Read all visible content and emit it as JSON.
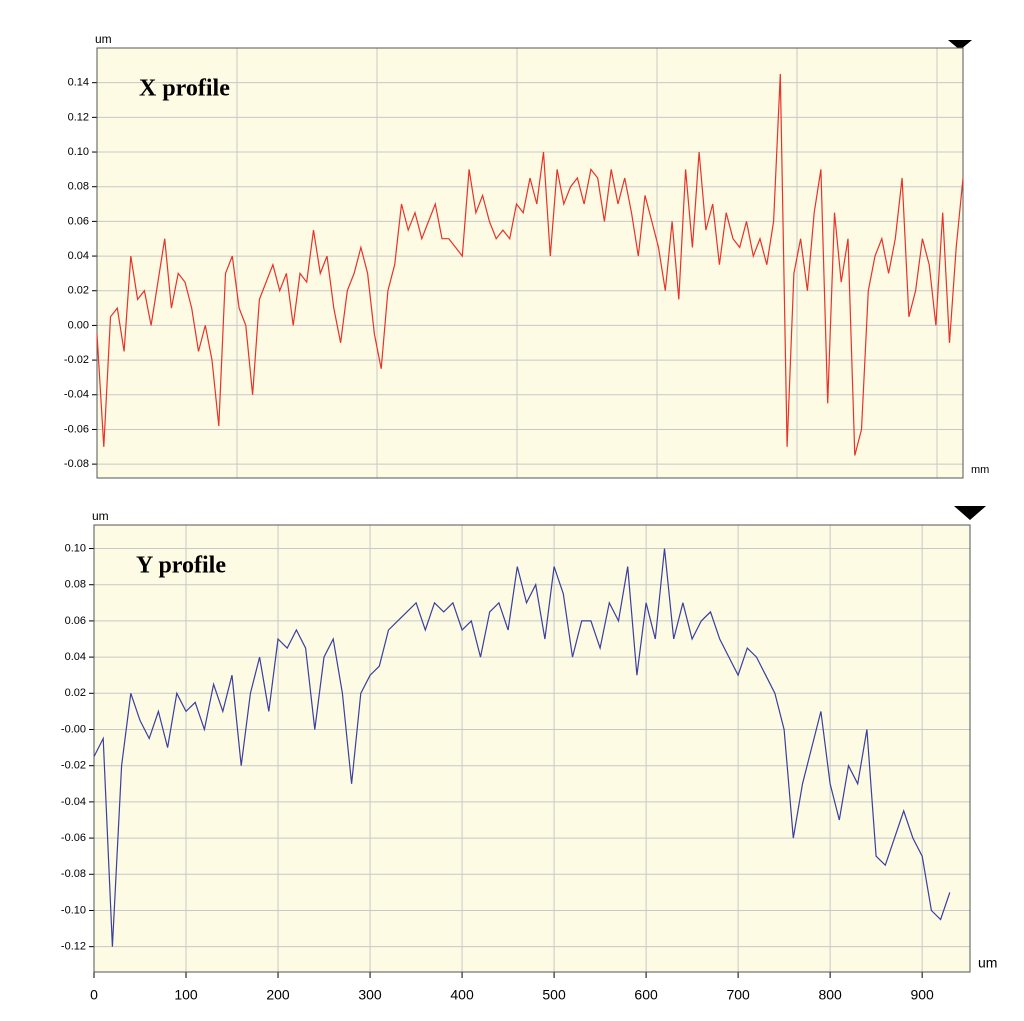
{
  "chart_data": [
    {
      "type": "line",
      "title": "X profile",
      "ylabel": "um",
      "xlabel": "mm",
      "color": "#e8322a",
      "grid": true,
      "ylim": [
        -0.088,
        0.16
      ],
      "yticks": [
        {
          "value": -0.08,
          "label": "-0.08"
        },
        {
          "value": -0.06,
          "label": "-0.06"
        },
        {
          "value": -0.04,
          "label": "-0.04"
        },
        {
          "value": -0.02,
          "label": "-0.02"
        },
        {
          "value": 0,
          "label": "0.00"
        },
        {
          "value": 0.02,
          "label": "0.02"
        },
        {
          "value": 0.04,
          "label": "0.04"
        },
        {
          "value": 0.06,
          "label": "0.06"
        },
        {
          "value": 0.08,
          "label": "0.08"
        },
        {
          "value": 0.1,
          "label": "0.10"
        },
        {
          "value": 0.12,
          "label": "0.12"
        },
        {
          "value": 0.14,
          "label": "0.14"
        }
      ],
      "values": [
        -0.005,
        -0.07,
        0.005,
        0.01,
        -0.015,
        0.04,
        0.015,
        0.02,
        0.0,
        0.025,
        0.05,
        0.01,
        0.03,
        0.025,
        0.01,
        -0.015,
        0.0,
        -0.02,
        -0.058,
        0.03,
        0.04,
        0.01,
        0.0,
        -0.04,
        0.015,
        0.025,
        0.035,
        0.02,
        0.03,
        0.0,
        0.03,
        0.025,
        0.055,
        0.03,
        0.04,
        0.01,
        -0.01,
        0.02,
        0.03,
        0.045,
        0.03,
        -0.005,
        -0.025,
        0.02,
        0.035,
        0.07,
        0.055,
        0.065,
        0.05,
        0.06,
        0.07,
        0.05,
        0.05,
        0.045,
        0.04,
        0.09,
        0.065,
        0.075,
        0.06,
        0.05,
        0.055,
        0.05,
        0.07,
        0.065,
        0.085,
        0.07,
        0.1,
        0.04,
        0.09,
        0.07,
        0.08,
        0.085,
        0.07,
        0.09,
        0.085,
        0.06,
        0.09,
        0.07,
        0.085,
        0.065,
        0.04,
        0.075,
        0.06,
        0.045,
        0.02,
        0.06,
        0.015,
        0.09,
        0.045,
        0.1,
        0.055,
        0.07,
        0.035,
        0.065,
        0.05,
        0.045,
        0.06,
        0.04,
        0.05,
        0.035,
        0.06,
        0.145,
        -0.07,
        0.03,
        0.05,
        0.02,
        0.065,
        0.09,
        -0.045,
        0.065,
        0.025,
        0.05,
        -0.075,
        -0.06,
        0.02,
        0.04,
        0.05,
        0.03,
        0.05,
        0.085,
        0.005,
        0.02,
        0.05,
        0.035,
        0.0,
        0.065,
        -0.01,
        0.045,
        0.085
      ]
    },
    {
      "type": "line",
      "title": "Y profile",
      "ylabel": "um",
      "xlabel": "um",
      "color": "#3a3fa0",
      "grid": true,
      "xlim": [
        0,
        952
      ],
      "xticks": [
        0,
        100,
        200,
        300,
        400,
        500,
        600,
        700,
        800,
        900
      ],
      "ylim": [
        -0.134,
        0.113
      ],
      "yticks": [
        {
          "value": -0.12,
          "label": "-0.12"
        },
        {
          "value": -0.1,
          "label": "-0.10"
        },
        {
          "value": -0.08,
          "label": "-0.08"
        },
        {
          "value": -0.06,
          "label": "-0.06"
        },
        {
          "value": -0.04,
          "label": "-0.04"
        },
        {
          "value": -0.02,
          "label": "-0.02"
        },
        {
          "value": 0,
          "label": "-0.00"
        },
        {
          "value": 0.02,
          "label": "0.02"
        },
        {
          "value": 0.04,
          "label": "0.04"
        },
        {
          "value": 0.06,
          "label": "0.06"
        },
        {
          "value": 0.08,
          "label": "0.08"
        },
        {
          "value": 0.1,
          "label": "0.10"
        }
      ],
      "x": [
        0,
        10,
        20,
        30,
        40,
        50,
        60,
        70,
        80,
        90,
        100,
        110,
        120,
        130,
        140,
        150,
        160,
        170,
        180,
        190,
        200,
        210,
        220,
        230,
        240,
        250,
        260,
        270,
        280,
        290,
        300,
        310,
        320,
        330,
        340,
        350,
        360,
        370,
        380,
        390,
        400,
        410,
        420,
        430,
        440,
        450,
        460,
        470,
        480,
        490,
        500,
        510,
        520,
        530,
        540,
        550,
        560,
        570,
        580,
        590,
        600,
        610,
        620,
        630,
        640,
        650,
        660,
        670,
        680,
        690,
        700,
        710,
        720,
        730,
        740,
        750,
        760,
        770,
        780,
        790,
        800,
        810,
        820,
        830,
        840,
        850,
        860,
        870,
        880,
        890,
        900,
        910,
        920,
        930
      ],
      "values": [
        -0.015,
        -0.005,
        -0.12,
        -0.02,
        0.02,
        0.005,
        -0.005,
        0.01,
        -0.01,
        0.02,
        0.01,
        0.015,
        0.0,
        0.025,
        0.01,
        0.03,
        -0.02,
        0.02,
        0.04,
        0.01,
        0.05,
        0.045,
        0.055,
        0.045,
        0.0,
        0.04,
        0.05,
        0.02,
        -0.03,
        0.02,
        0.03,
        0.035,
        0.055,
        0.06,
        0.065,
        0.07,
        0.055,
        0.07,
        0.065,
        0.07,
        0.055,
        0.06,
        0.04,
        0.065,
        0.07,
        0.055,
        0.09,
        0.07,
        0.08,
        0.05,
        0.09,
        0.075,
        0.04,
        0.06,
        0.06,
        0.045,
        0.07,
        0.06,
        0.09,
        0.03,
        0.07,
        0.05,
        0.1,
        0.05,
        0.07,
        0.05,
        0.06,
        0.065,
        0.05,
        0.04,
        0.03,
        0.045,
        0.04,
        0.03,
        0.02,
        0.0,
        -0.06,
        -0.03,
        -0.01,
        0.01,
        -0.03,
        -0.05,
        -0.02,
        -0.03,
        0.0,
        -0.07,
        -0.075,
        -0.06,
        -0.045,
        -0.06,
        -0.07,
        -0.1,
        -0.105,
        -0.09
      ]
    }
  ]
}
